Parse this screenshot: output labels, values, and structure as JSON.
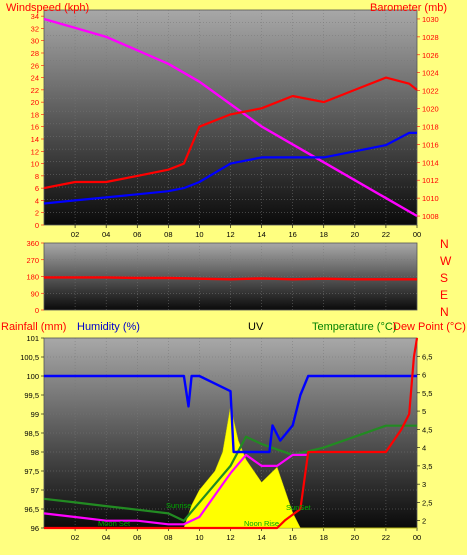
{
  "top_panel": {
    "windspeed_label": "Windspeed (kph)",
    "barometer_label": "Barometer (mb)",
    "y_left_ticks": [
      "0",
      "2",
      "4",
      "6",
      "8",
      "10",
      "12",
      "14",
      "16",
      "18",
      "20",
      "22",
      "24",
      "26",
      "28",
      "30",
      "32",
      "34"
    ],
    "y_right_ticks": [
      "1008",
      "1010",
      "1012",
      "1014",
      "1016",
      "1018",
      "1020",
      "1022",
      "1024",
      "1026",
      "1028",
      "1030"
    ],
    "x_ticks": [
      "02",
      "04",
      "06",
      "08",
      "10",
      "12",
      "14",
      "16",
      "18",
      "20",
      "22",
      "00"
    ]
  },
  "middle_panel": {
    "y_ticks": [
      "0",
      "90",
      "180",
      "270",
      "360"
    ],
    "directions": [
      "N",
      "W",
      "S",
      "E",
      "N"
    ]
  },
  "bottom_panel": {
    "rainfall_label": "Rainfall (mm)",
    "humidity_label": "Humidity (%)",
    "uv_label": "UV",
    "temperature_label": "Temperature (°C)",
    "dewpoint_label": "Dew Point (°C)",
    "y_left_ticks": [
      "96",
      "96,5",
      "97",
      "97,5",
      "98",
      "98,5",
      "99",
      "99,5",
      "100",
      "100,5",
      "101"
    ],
    "y_right_ticks": [
      "2",
      "2,5",
      "3",
      "3,5",
      "4",
      "4,5",
      "5",
      "5,5",
      "6",
      "6,5"
    ],
    "x_ticks": [
      "02",
      "04",
      "06",
      "08",
      "10",
      "12",
      "14",
      "16",
      "18",
      "20",
      "22",
      "00"
    ],
    "annotations": {
      "moon_set": "Moon Set",
      "sunrise": "Sunrise",
      "noon": "Noon Rise",
      "sunset": "SunSet"
    }
  },
  "colors": {
    "background": "#ffff80",
    "wind_gust": "#ff0000",
    "wind_avg": "#0000ff",
    "barometer": "#ff00ff",
    "humidity": "#0000ff",
    "temperature": "#228b22",
    "dewpoint": "#ff0000",
    "uv": "#ffff00",
    "text_red": "#ff0000",
    "text_green": "#008000"
  },
  "chart_data": [
    {
      "type": "line",
      "x_unit": "hour",
      "xlim": [
        0,
        24
      ],
      "ylim_left": [
        0,
        35
      ],
      "ylim_right": [
        1007,
        1031
      ],
      "series": [
        {
          "name": "Windspeed (kph)",
          "axis": "left",
          "x": [
            0,
            2,
            4,
            6,
            8,
            9,
            10,
            12,
            14,
            16,
            18,
            20,
            22,
            23.5,
            24
          ],
          "values": [
            6,
            7,
            7,
            8,
            9,
            10,
            16,
            18,
            19,
            21,
            20,
            22,
            24,
            23,
            22
          ]
        },
        {
          "name": "Windspeed (kph)",
          "axis": "left",
          "x": [
            0,
            2,
            4,
            6,
            8,
            9,
            10,
            12,
            14,
            16,
            18,
            20,
            22,
            23.5,
            24
          ],
          "values": [
            3.5,
            4,
            4.5,
            5,
            5.5,
            6,
            7,
            10,
            11,
            11,
            11,
            12,
            13,
            15,
            15
          ]
        },
        {
          "name": "Barometer (mb)",
          "axis": "right",
          "x": [
            0,
            2,
            4,
            6,
            8,
            10,
            12,
            14,
            16,
            18,
            20,
            22,
            24
          ],
          "values": [
            1030,
            1029,
            1028,
            1026.5,
            1025,
            1023,
            1020.5,
            1018,
            1016,
            1014,
            1012,
            1010,
            1008
          ]
        }
      ]
    },
    {
      "type": "line",
      "xlim": [
        0,
        24
      ],
      "ylim": [
        0,
        360
      ],
      "series": [
        {
          "x": [
            0,
            2,
            4,
            6,
            8,
            10,
            12,
            14,
            16,
            18,
            20,
            22,
            24
          ],
          "values": [
            175,
            175,
            175,
            172,
            172,
            168,
            165,
            170,
            165,
            168,
            165,
            165,
            165
          ]
        }
      ]
    },
    {
      "type": "line",
      "xlim": [
        0,
        24
      ],
      "ylim_left": [
        96,
        101
      ],
      "ylim_right": [
        1.8,
        7
      ],
      "series": [
        {
          "name": "Rainfall (mm)",
          "axis": "left",
          "x": [
            0,
            15,
            15.5,
            16.5,
            17,
            22,
            23,
            23.5,
            23.8,
            24
          ],
          "values": [
            96,
            96,
            96.2,
            96.5,
            98,
            98,
            98.6,
            99,
            100.5,
            101
          ]
        },
        {
          "name": "Humidity (%)",
          "axis": "left",
          "x": [
            0,
            9,
            9.3,
            9.5,
            10,
            12,
            12.2,
            13.5,
            14.5,
            14.7,
            15.2,
            16,
            16.5,
            17,
            24
          ],
          "values": [
            100,
            100,
            99.2,
            100,
            100,
            99.6,
            98,
            98,
            98,
            98.7,
            98.3,
            98.7,
            99.5,
            100,
            100
          ]
        },
        {
          "name": "UV",
          "axis": "left",
          "x": [
            0,
            9,
            9.5,
            10,
            11,
            11.5,
            12,
            12.5,
            13,
            14,
            15,
            15.5,
            16,
            16.5,
            24
          ],
          "values": [
            96,
            96,
            96.6,
            97,
            97.5,
            98,
            99.2,
            98.3,
            97.8,
            97.2,
            97.6,
            97,
            96.4,
            96,
            96
          ]
        },
        {
          "name": "Temperature (°C)",
          "axis": "right",
          "x": [
            0,
            2,
            4,
            6,
            8,
            9,
            10,
            12,
            13,
            14,
            16,
            18,
            20,
            22,
            24
          ],
          "values": [
            2.6,
            2.5,
            2.4,
            2.3,
            2.2,
            2.0,
            2.5,
            3.5,
            4.3,
            4.1,
            3.8,
            4.0,
            4.3,
            4.6,
            4.6
          ]
        },
        {
          "name": "Dew Point (°C)",
          "axis": "right",
          "x": [
            0,
            2,
            4,
            6,
            8,
            9,
            10,
            12,
            13,
            14,
            15,
            16,
            17
          ],
          "values": [
            2.2,
            2.1,
            2.0,
            2.0,
            1.9,
            1.9,
            2.1,
            3.3,
            3.8,
            3.5,
            3.5,
            3.8,
            3.8
          ]
        }
      ]
    }
  ]
}
